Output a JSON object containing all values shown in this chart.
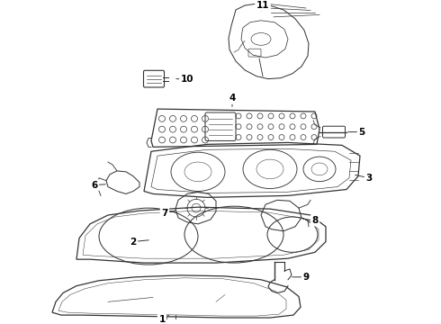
{
  "background_color": "#ffffff",
  "line_color": "#333333",
  "lw": 0.9,
  "fig_w": 4.9,
  "fig_h": 3.6,
  "dpi": 100
}
